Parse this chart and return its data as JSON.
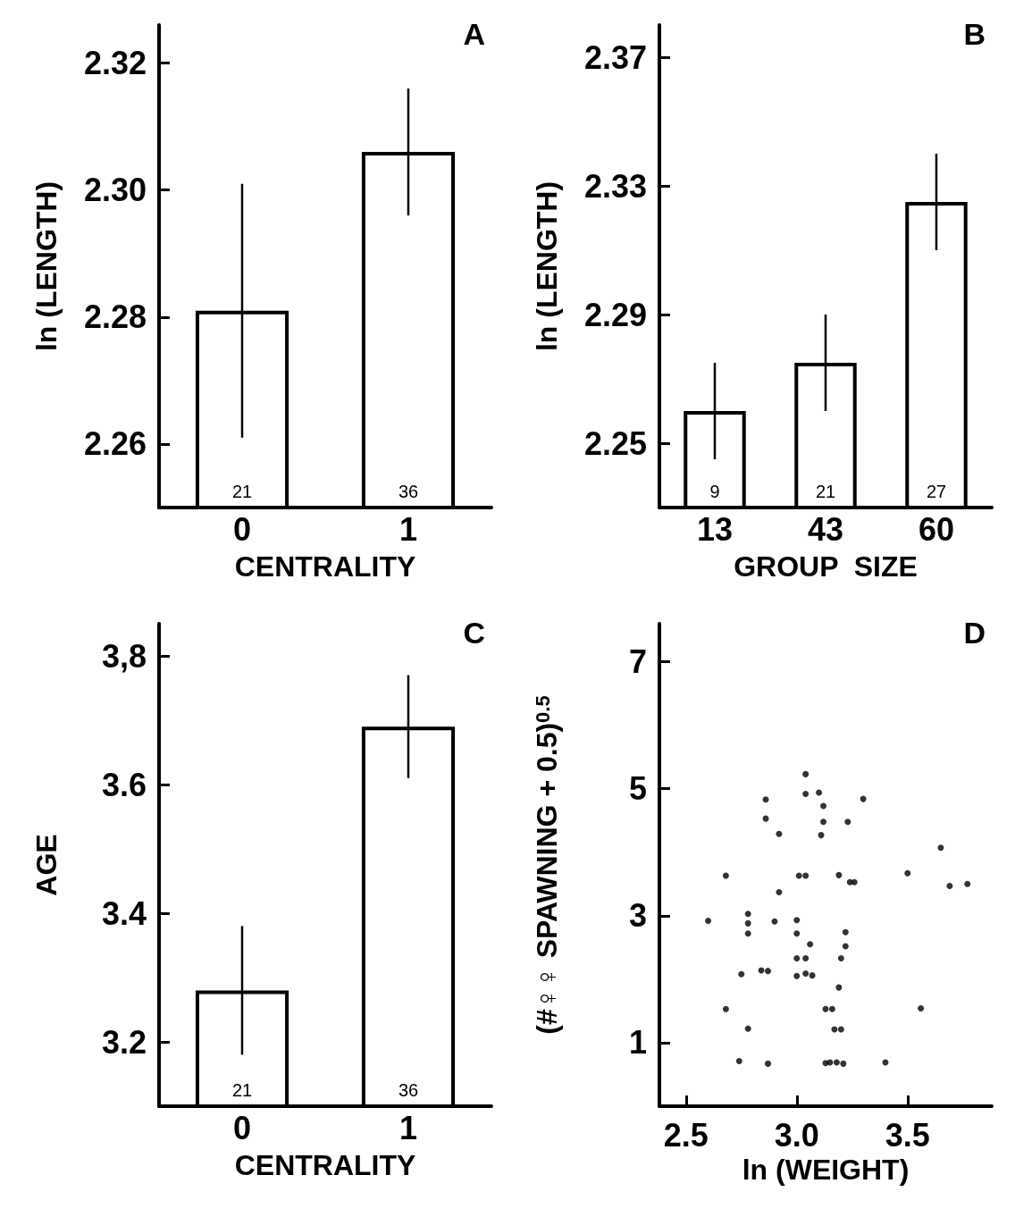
{
  "chart_data": [
    {
      "type": "bar",
      "title": "A",
      "categories": [
        "0",
        "1"
      ],
      "values": [
        2.281,
        2.306
      ],
      "errors": [
        0.02,
        0.01
      ],
      "annotations": [
        "21",
        "36"
      ],
      "color": "#ffffff",
      "xlabel": "CENTRALITY",
      "ylabel": "ln (LENGTH)",
      "ylim": [
        2.25,
        2.326
      ],
      "yticks": [
        2.26,
        2.28,
        {
          "value": 2.3,
          "label": "2.30"
        },
        2.32
      ],
      "grid": false
    },
    {
      "type": "bar",
      "title": "B",
      "categories": [
        "13",
        "43",
        "60"
      ],
      "values": [
        2.26,
        2.275,
        2.325
      ],
      "errors": [
        0.015,
        0.015,
        0.015
      ],
      "annotations": [
        "9",
        "21",
        "27"
      ],
      "color": "#ffffff",
      "xlabel": "GROUP  SIZE",
      "ylabel": "ln (LENGTH)",
      "ylim": [
        2.23,
        2.38
      ],
      "yticks": [
        2.25,
        2.29,
        2.33,
        2.37
      ],
      "grid": false
    },
    {
      "type": "bar",
      "title": "C",
      "categories": [
        "0",
        "1"
      ],
      "values": [
        3.28,
        3.69
      ],
      "errors": [
        0.1,
        0.08
      ],
      "annotations": [
        "21",
        "36"
      ],
      "color": "#ffffff",
      "xlabel": "CENTRALITY",
      "ylabel": "AGE",
      "ylim": [
        3.1,
        3.85
      ],
      "yticks": [
        3.2,
        3.4,
        3.6,
        {
          "value": 3.8,
          "label": "3,8"
        }
      ],
      "grid": false
    },
    {
      "type": "scatter",
      "title": "D",
      "xlabel": "ln (WEIGHT)",
      "ylabel": "(#♀♀ SPAWNING + 0.5)$^{0.5}$",
      "color": "#000000",
      "marker": "circle",
      "grid": false,
      "xlim": [
        2.38,
        3.88
      ],
      "xticks": [
        2.5,
        {
          "value": 3.0,
          "label": "3.0"
        },
        3.5
      ],
      "ylim": [
        0,
        7.6
      ],
      "yticks": [
        1,
        3,
        5,
        7
      ],
      "x": [
        3.04,
        3.04,
        3.1,
        2.86,
        3.12,
        3.3,
        2.86,
        3.12,
        3.23,
        2.92,
        3.11,
        3.65,
        2.68,
        3.01,
        3.04,
        3.19,
        3.24,
        3.26,
        3.5,
        3.69,
        3.77,
        2.92,
        2.6,
        2.78,
        2.78,
        2.78,
        2.9,
        3.0,
        3.0,
        3.22,
        3.22,
        3.06,
        3.0,
        3.04,
        3.2,
        2.75,
        2.84,
        2.87,
        3.0,
        3.04,
        3.07,
        3.19,
        2.68,
        3.13,
        3.16,
        3.56,
        2.78,
        3.17,
        3.2,
        2.74,
        2.87,
        3.13,
        3.15,
        3.18,
        3.21,
        3.4
      ],
      "values": [
        5.23,
        4.92,
        4.94,
        4.83,
        4.73,
        4.84,
        4.53,
        4.48,
        4.48,
        4.29,
        4.27,
        4.07,
        3.63,
        3.63,
        3.63,
        3.64,
        3.53,
        3.53,
        3.67,
        3.47,
        3.5,
        3.37,
        2.92,
        3.03,
        2.88,
        2.72,
        2.91,
        2.93,
        2.72,
        2.74,
        2.52,
        2.55,
        2.33,
        2.33,
        2.33,
        2.08,
        2.14,
        2.13,
        2.05,
        2.09,
        2.06,
        1.87,
        1.53,
        1.53,
        1.53,
        1.54,
        1.22,
        1.21,
        1.21,
        0.71,
        0.67,
        0.68,
        0.69,
        0.69,
        0.67,
        0.69
      ]
    }
  ]
}
